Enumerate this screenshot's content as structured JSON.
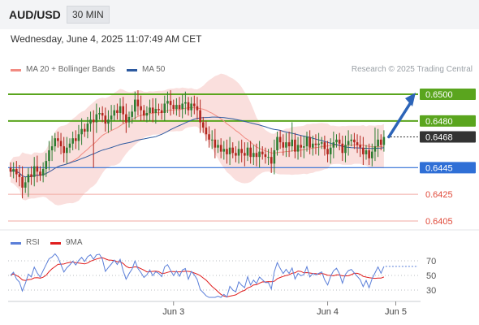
{
  "header": {
    "symbol": "AUD/USD",
    "timeframe": "30 MIN"
  },
  "timestamp": "Wednesday, June 4, 2025 11:07:49 AM CET",
  "credit": "Research © 2025 Trading Central",
  "colors": {
    "support": "#2f6fd6",
    "resistance": "#5aa51e",
    "minor": "#e04a3a",
    "last": "#333333",
    "ma20": "#f28b82",
    "ma50": "#2d5aa0",
    "rsi": "#5b7fd9",
    "rsi_ma": "#e01e1e",
    "up": "#2e7d32",
    "down": "#b3261e"
  },
  "legend": {
    "price": [
      {
        "label": "MA 20 + Bollinger Bands",
        "color": "#f28b82"
      },
      {
        "label": "MA 50",
        "color": "#2d5aa0"
      }
    ],
    "rsi": [
      {
        "label": "RSI",
        "color": "#5b7fd9"
      },
      {
        "label": "9MA",
        "color": "#e01e1e"
      }
    ]
  },
  "chart_data": {
    "type": "candlestick",
    "price_range": [
      0.6395,
      0.6525
    ],
    "levels": [
      {
        "label": "0.6500",
        "value": 0.65,
        "kind": "resistance"
      },
      {
        "label": "0.6480",
        "value": 0.648,
        "kind": "resistance"
      },
      {
        "label": "0.6468",
        "value": 0.6468,
        "kind": "last"
      },
      {
        "label": "0.6445",
        "value": 0.6445,
        "kind": "support"
      },
      {
        "label": "0.6425",
        "value": 0.6425,
        "kind": "minor"
      },
      {
        "label": "0.6405",
        "value": 0.6405,
        "kind": "minor"
      }
    ],
    "x_ticks": [
      {
        "label": "Jun 3",
        "index": 55
      },
      {
        "label": "Jun 4",
        "index": 107
      },
      {
        "label": "Jun 5",
        "index": 130
      }
    ],
    "n_bars": 127,
    "closes": [
      0.6442,
      0.6444,
      0.644,
      0.6438,
      0.643,
      0.6434,
      0.644,
      0.6438,
      0.6446,
      0.6442,
      0.6439,
      0.6444,
      0.645,
      0.6458,
      0.6461,
      0.6467,
      0.6465,
      0.6461,
      0.6456,
      0.646,
      0.6463,
      0.6467,
      0.6465,
      0.647,
      0.6474,
      0.6472,
      0.6478,
      0.6481,
      0.6479,
      0.6485,
      0.6486,
      0.6484,
      0.6478,
      0.6481,
      0.6484,
      0.6488,
      0.6486,
      0.6491,
      0.6485,
      0.6479,
      0.6483,
      0.6487,
      0.6496,
      0.6491,
      0.6488,
      0.6484,
      0.6486,
      0.649,
      0.6486,
      0.6489,
      0.6488,
      0.6486,
      0.6493,
      0.6495,
      0.6492,
      0.6489,
      0.6492,
      0.6489,
      0.6493,
      0.6494,
      0.6488,
      0.6493,
      0.6491,
      0.6488,
      0.6479,
      0.6475,
      0.647,
      0.6466,
      0.6466,
      0.646,
      0.6462,
      0.6457,
      0.6459,
      0.6455,
      0.646,
      0.6456,
      0.6454,
      0.6459,
      0.6456,
      0.6454,
      0.646,
      0.6453,
      0.6456,
      0.6453,
      0.6457,
      0.6455,
      0.6453,
      0.6453,
      0.6448,
      0.6458,
      0.6468,
      0.6464,
      0.646,
      0.6464,
      0.6461,
      0.6466,
      0.6457,
      0.6462,
      0.646,
      0.6461,
      0.6468,
      0.646,
      0.6463,
      0.6462,
      0.6463,
      0.6464,
      0.6459,
      0.6455,
      0.646,
      0.6464,
      0.6466,
      0.6463,
      0.6456,
      0.6462,
      0.6465,
      0.6466,
      0.6464,
      0.6462,
      0.646,
      0.6455,
      0.6458,
      0.6452,
      0.6457,
      0.6461,
      0.6466,
      0.6462,
      0.6468
    ],
    "rsi_range": [
      20,
      80
    ],
    "rsi_levels": [
      70,
      50,
      30
    ],
    "projection": {
      "from": 0.6468,
      "to": 0.65
    }
  }
}
